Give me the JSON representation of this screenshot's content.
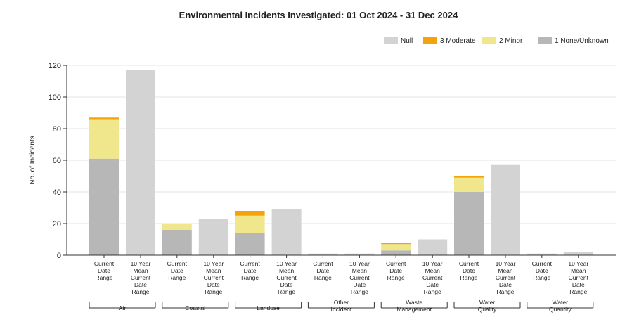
{
  "chart_data": {
    "type": "bar",
    "stacked": true,
    "title": "Environmental Incidents Investigated: 01 Oct 2024 - 31 Dec 2024",
    "ylabel": "No. of Incidents",
    "xlabel": "",
    "ylim": [
      0,
      120
    ],
    "yticks": [
      0,
      20,
      40,
      60,
      80,
      100,
      120
    ],
    "grid": true,
    "legend_position": "top-right",
    "legend": [
      {
        "name": "Null",
        "color": "#d3d3d3"
      },
      {
        "name": "3 Moderate",
        "color": "#f5a30a"
      },
      {
        "name": "2 Minor",
        "color": "#f0e68c"
      },
      {
        "name": "1 None/Unknown",
        "color": "#b7b7b7"
      }
    ],
    "bar_category_lines": {
      "current": [
        "Current",
        "Date",
        "Range"
      ],
      "mean": [
        "10 Year",
        "Mean",
        "Current",
        "Date",
        "Range"
      ]
    },
    "groups": [
      {
        "label": [
          "Air"
        ],
        "bars": [
          {
            "category": "Current Date Range",
            "kind": "current",
            "stack": {
              "1 None/Unknown": 61,
              "2 Minor": 25,
              "3 Moderate": 1,
              "Null": 0
            }
          },
          {
            "category": "10 Year Mean Current Date Range",
            "kind": "mean",
            "stack": {
              "Null": 117
            }
          }
        ]
      },
      {
        "label": [
          "Coastal"
        ],
        "bars": [
          {
            "category": "Current Date Range",
            "kind": "current",
            "stack": {
              "1 None/Unknown": 16,
              "2 Minor": 4,
              "3 Moderate": 0,
              "Null": 0
            }
          },
          {
            "category": "10 Year Mean Current Date Range",
            "kind": "mean",
            "stack": {
              "Null": 23
            }
          }
        ]
      },
      {
        "label": [
          "Landuse"
        ],
        "bars": [
          {
            "category": "Current Date Range",
            "kind": "current",
            "stack": {
              "1 None/Unknown": 14,
              "2 Minor": 11,
              "3 Moderate": 3,
              "Null": 0
            }
          },
          {
            "category": "10 Year Mean Current Date Range",
            "kind": "mean",
            "stack": {
              "Null": 29
            }
          }
        ]
      },
      {
        "label": [
          "Other",
          "Incident"
        ],
        "bars": [
          {
            "category": "Current Date Range",
            "kind": "current",
            "stack": {
              "1 None/Unknown": 0,
              "2 Minor": 0,
              "3 Moderate": 0,
              "Null": 1
            }
          },
          {
            "category": "10 Year Mean Current Date Range",
            "kind": "mean",
            "stack": {
              "Null": 1
            }
          }
        ]
      },
      {
        "label": [
          "Waste",
          "Management"
        ],
        "bars": [
          {
            "category": "Current Date Range",
            "kind": "current",
            "stack": {
              "1 None/Unknown": 3,
              "2 Minor": 4,
              "3 Moderate": 1,
              "Null": 0
            }
          },
          {
            "category": "10 Year Mean Current Date Range",
            "kind": "mean",
            "stack": {
              "Null": 10
            }
          }
        ]
      },
      {
        "label": [
          "Water",
          "Quality"
        ],
        "bars": [
          {
            "category": "Current Date Range",
            "kind": "current",
            "stack": {
              "1 None/Unknown": 40,
              "2 Minor": 9,
              "3 Moderate": 1,
              "Null": 0
            }
          },
          {
            "category": "10 Year Mean Current Date Range",
            "kind": "mean",
            "stack": {
              "Null": 57
            }
          }
        ]
      },
      {
        "label": [
          "Water",
          "Quantity"
        ],
        "bars": [
          {
            "category": "Current Date Range",
            "kind": "current",
            "stack": {
              "1 None/Unknown": 0,
              "2 Minor": 0,
              "3 Moderate": 0,
              "Null": 1
            }
          },
          {
            "category": "10 Year Mean Current Date Range",
            "kind": "mean",
            "stack": {
              "Null": 2
            }
          }
        ]
      }
    ]
  }
}
